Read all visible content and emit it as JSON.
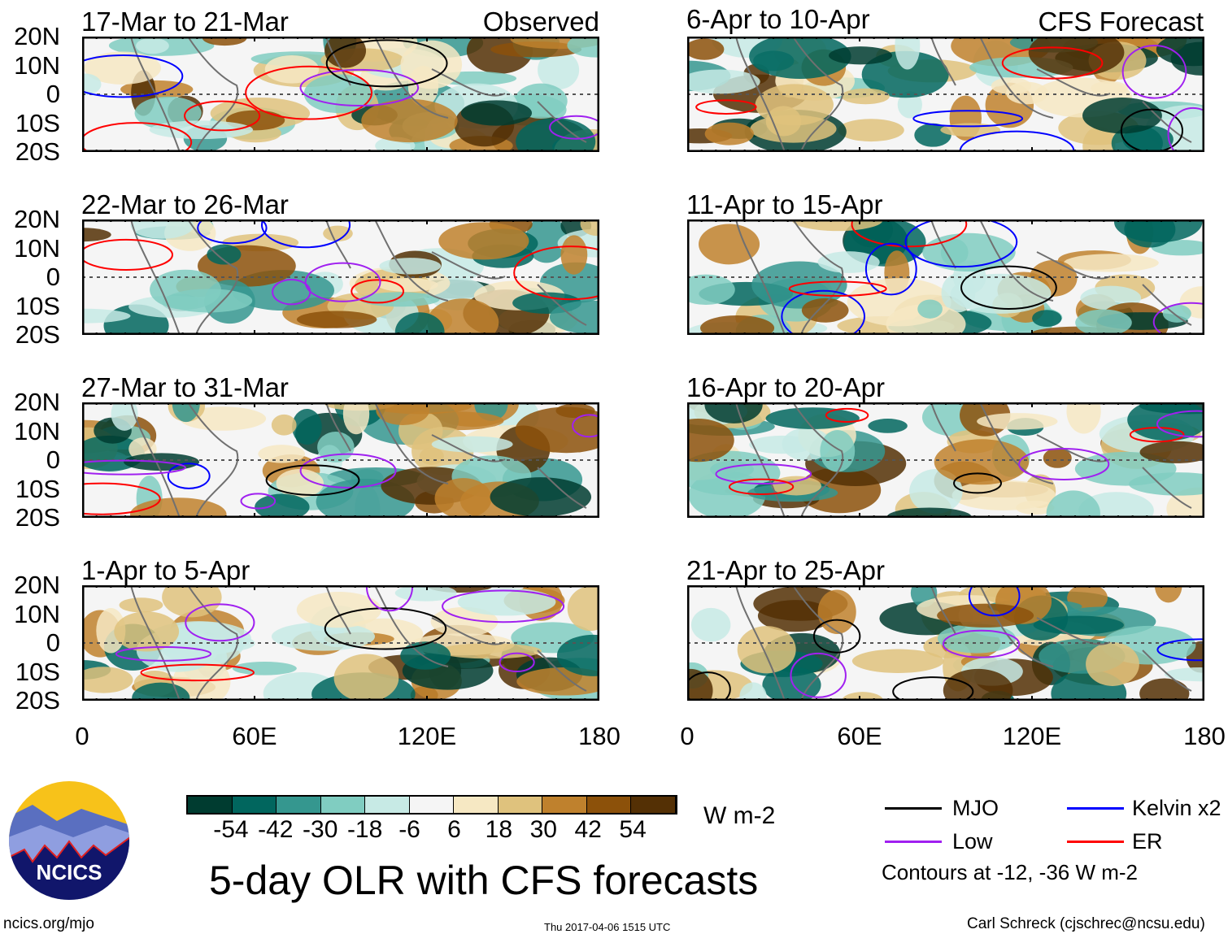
{
  "observed_label": "Observed",
  "forecast_label": "CFS Forecast",
  "panels": {
    "left": [
      "17-Mar to 21-Mar",
      "22-Mar to 26-Mar",
      "27-Mar to 31-Mar",
      "1-Apr to 5-Apr"
    ],
    "right": [
      "6-Apr to 10-Apr",
      "11-Apr to 15-Apr",
      "16-Apr to 20-Apr",
      "21-Apr to 25-Apr"
    ]
  },
  "lat_labels": [
    "20N",
    "10N",
    "0",
    "10S",
    "20S"
  ],
  "lon_labels": [
    "0",
    "60E",
    "120E",
    "180"
  ],
  "colorbar": {
    "colors": [
      "#003c30",
      "#01665e",
      "#35978f",
      "#80cdc1",
      "#c7eae5",
      "#f5f5f5",
      "#f6e8c3",
      "#dfc27d",
      "#bf812d",
      "#8c510a",
      "#543005"
    ],
    "labels": [
      "-54",
      "-42",
      "-30",
      "-18",
      "-6",
      "6",
      "18",
      "30",
      "42",
      "54"
    ],
    "units": "W m-2"
  },
  "title": "5-day OLR with CFS forecasts",
  "legend": {
    "items": [
      {
        "label": "MJO",
        "color": "#000000"
      },
      {
        "label": "Kelvin x2",
        "color": "#0000ff"
      },
      {
        "label": "Low",
        "color": "#a020f0"
      },
      {
        "label": "ER",
        "color": "#ff0000"
      }
    ],
    "note": "Contours at -12, -36 W m-2"
  },
  "logo_text": "NCICS",
  "footer": {
    "url": "ncics.org/mjo",
    "timestamp": "Thu 2017-04-06 1515 UTC",
    "credit": "Carl Schreck (cjschrec@ncsu.edu)"
  }
}
